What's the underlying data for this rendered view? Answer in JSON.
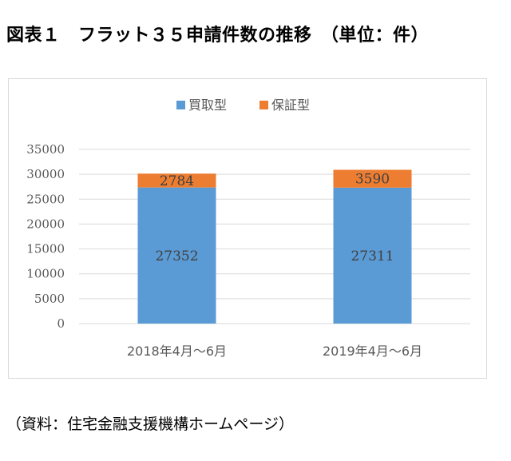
{
  "heading": "図表１　フラット３５申請件数の推移　（単位：件）",
  "source": "（資料：住宅金融支援機構ホームページ）",
  "colors": {
    "series_purchase": "#5b9bd5",
    "series_guarantee": "#ed7d31",
    "grid": "#d9d9d9",
    "axis_text": "#595959"
  },
  "chart_data": {
    "type": "bar",
    "stacked": true,
    "categories": [
      "2018年4月～6月",
      "2019年4月～6月"
    ],
    "series": [
      {
        "name": "買取型",
        "values": [
          27352,
          27311
        ]
      },
      {
        "name": "保証型",
        "values": [
          2784,
          3590
        ]
      }
    ],
    "data_labels": [
      [
        "27352",
        "27311"
      ],
      [
        "2784",
        "3590"
      ]
    ],
    "ylim": [
      0,
      35000
    ],
    "yticks": [
      "0",
      "5000",
      "10000",
      "15000",
      "20000",
      "25000",
      "30000",
      "35000"
    ],
    "title": "",
    "xlabel": "",
    "ylabel": "",
    "grid": true,
    "legend_position": "top"
  }
}
